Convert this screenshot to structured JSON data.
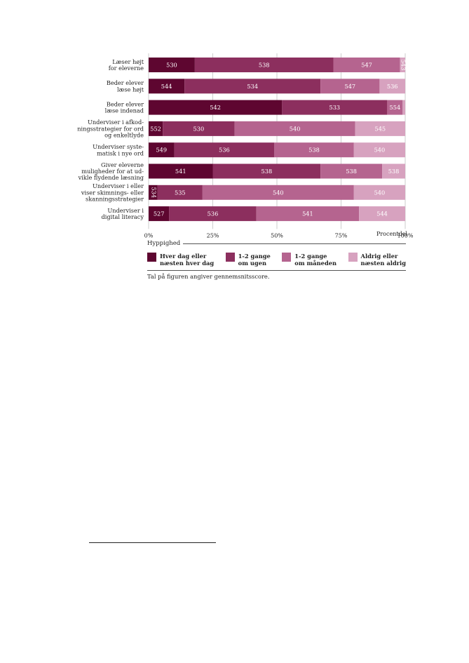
{
  "chart_data": {
    "type": "bar",
    "orientation": "horizontal",
    "stacked": true,
    "normalized": true,
    "categories": [
      [
        "Læser højt",
        "for eleverne"
      ],
      [
        "Beder elever",
        "læse højt"
      ],
      [
        "Beder elever",
        "læse indenad"
      ],
      [
        "Underviser i afkod-",
        "ningsstrategier for ord",
        "og enkeltlyde"
      ],
      [
        "Underviser syste-",
        "matisk i nye ord"
      ],
      [
        "Giver eleverne",
        "muligheder for at ud-",
        "vikle flydende læsning"
      ],
      [
        "Underviser i eller",
        "viser skimnings- eller",
        "skanningsstrategier"
      ],
      [
        "Underviser i",
        "digital literacy"
      ]
    ],
    "series": [
      {
        "name": "Hver dag eller næsten hver dag",
        "color": "#5e0630",
        "values": [
          18,
          14,
          52,
          5.5,
          10,
          25,
          3.5,
          8
        ],
        "labels": [
          "530",
          "544",
          "542",
          "552",
          "549",
          "541",
          "534",
          "527"
        ]
      },
      {
        "name": "1-2 gange om ugen",
        "color": "#8c2f5e",
        "values": [
          54,
          53,
          41,
          28,
          39,
          42,
          17.5,
          34
        ],
        "labels": [
          "538",
          "534",
          "533",
          "530",
          "536",
          "538",
          "535",
          "536"
        ]
      },
      {
        "name": "1-2 gange om måneden",
        "color": "#b5648f",
        "values": [
          26,
          23,
          6,
          47,
          31,
          24,
          59,
          40
        ],
        "labels": [
          "547",
          "547",
          "554",
          "540",
          "538",
          "538",
          "540",
          "541"
        ]
      },
      {
        "name": "Aldrig eller næsten aldrig",
        "color": "#d7a2bf",
        "values": [
          2,
          10,
          1,
          19.5,
          20,
          9,
          20,
          18
        ],
        "labels": [
          "543",
          "536",
          "",
          "545",
          "540",
          "538",
          "540",
          "544"
        ]
      }
    ],
    "xlim": [
      0,
      100
    ],
    "xticks": [
      "0%",
      "25%",
      "50%",
      "75%",
      "100%"
    ],
    "xlabel": "Procentdel",
    "grid": true
  },
  "legend": {
    "title": "Hyppighed",
    "items": [
      {
        "text": [
          "Hver dag eller",
          "næsten hver dag"
        ],
        "color": "#5e0630"
      },
      {
        "text": [
          "1-2 gange",
          "om ugen"
        ],
        "color": "#8c2f5e"
      },
      {
        "text": [
          "1-2 gange",
          "om måneden"
        ],
        "color": "#b5648f"
      },
      {
        "text": [
          "Aldrig eller",
          "næsten aldrig"
        ],
        "color": "#d7a2bf"
      }
    ]
  },
  "note": "Tal på figuren angiver gennemsnitsscore."
}
